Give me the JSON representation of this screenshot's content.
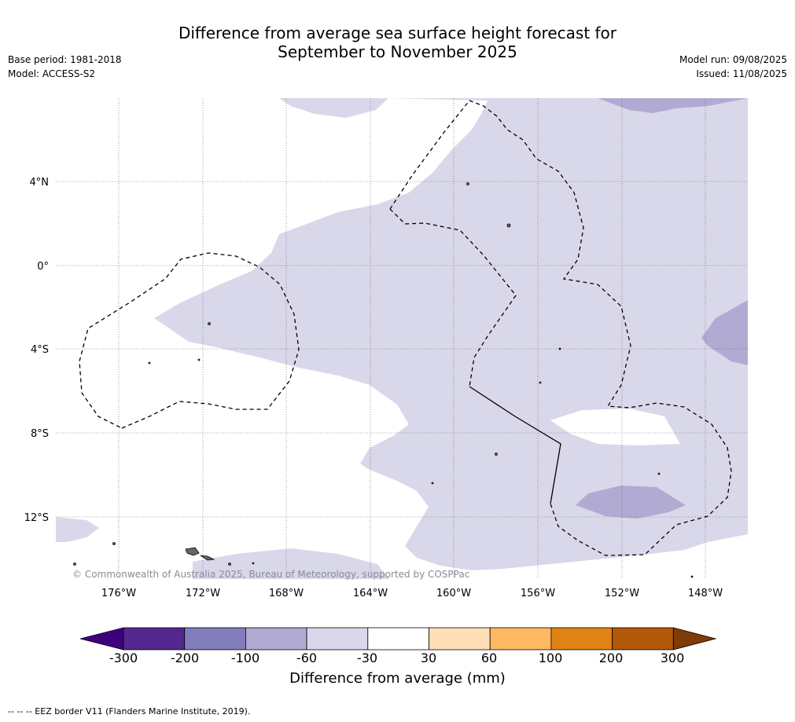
{
  "header": {
    "title_line1": "Difference from average sea surface height forecast for",
    "title_line2": "September to November 2025",
    "base_period": "Base period: 1981-2018",
    "model": "Model: ACCESS-S2",
    "model_run": "Model run: 09/08/2025",
    "issued": "Issued: 11/08/2025"
  },
  "map": {
    "lat_labels": [
      "4°N",
      "0°",
      "4°S",
      "8°S",
      "12°S"
    ],
    "lon_labels": [
      "176°W",
      "172°W",
      "168°W",
      "164°W",
      "160°W",
      "156°W",
      "152°W",
      "148°W"
    ],
    "copyright": "© Commonwealth of Australia 2025, Bureau of Meteorology, supported by COSPPac"
  },
  "colorbar": {
    "ticks": [
      "-300",
      "-200",
      "-100",
      "-60",
      "-30",
      "30",
      "60",
      "100",
      "200",
      "300"
    ],
    "colors": [
      "#3f007d",
      "#54278f",
      "#807dba",
      "#b1abd3",
      "#d9d8ea",
      "#ffffff",
      "#fee0b6",
      "#fdb863",
      "#e08214",
      "#b35806",
      "#7f3b08"
    ],
    "label": "Difference from average (mm)"
  },
  "footer": {
    "legend_text": "--  --  -- EEZ border V11 (Flanders Marine Institute, 2019)."
  }
}
